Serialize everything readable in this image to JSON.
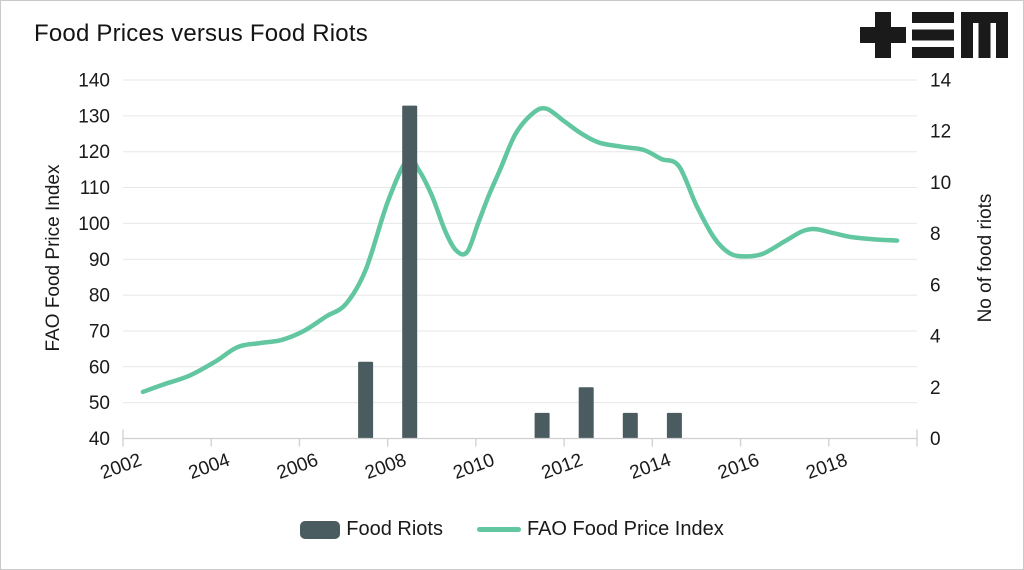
{
  "title": "Food Prices versus Food Riots",
  "logo": {
    "name": "tem-logo",
    "color": "#1a1a1a"
  },
  "colors": {
    "bar": "#4a5c5f",
    "line": "#62c7a0",
    "grid": "#e7e7e7",
    "axis": "#cfcfcf",
    "text": "#1a1a1a",
    "background": "#ffffff",
    "border": "#c9c9c9"
  },
  "legend": {
    "items": [
      {
        "label": "Food Riots",
        "swatch": "bar"
      },
      {
        "label": "FAO Food Price Index",
        "swatch": "line"
      }
    ]
  },
  "chart_data": {
    "type": "combo-bar-line",
    "title": "Food Prices versus Food Riots",
    "grid": "horizontal",
    "legend_position": "bottom",
    "x_axis": {
      "range": [
        2002,
        2020
      ],
      "tick_years": [
        2002,
        2004,
        2006,
        2008,
        2010,
        2012,
        2014,
        2016,
        2018
      ],
      "tick_labels": [
        "2002",
        "2004",
        "2006",
        "2008",
        "2010",
        "2012",
        "2014",
        "2016",
        "2018"
      ],
      "label_rotation_deg": -20,
      "note": "data for year Y is plotted at axis position Y+0.5 (band centers)"
    },
    "y_axis_left": {
      "title": "FAO Food Price Index",
      "min": 40,
      "max": 140,
      "step": 10
    },
    "y_axis_right": {
      "title": "No of food riots",
      "min": 0,
      "max": 14,
      "step": 2
    },
    "series": [
      {
        "name": "Food Riots",
        "type": "bar",
        "axis": "right",
        "color": "#4a5c5f",
        "years": [
          2007,
          2008,
          2011,
          2012,
          2013,
          2014
        ],
        "values": [
          3,
          13,
          1,
          2,
          1,
          1
        ]
      },
      {
        "name": "FAO Food Price Index",
        "type": "line",
        "axis": "left",
        "color": "#62c7a0",
        "years": [
          2002,
          2003,
          2004,
          2005,
          2006,
          2007,
          2008,
          2009,
          2010,
          2011,
          2012,
          2013,
          2014,
          2015,
          2016,
          2017,
          2018,
          2019
        ],
        "values": [
          53,
          57.5,
          65,
          67,
          73.5,
          87,
          118,
          92.5,
          114.5,
          132,
          123.5,
          120.5,
          116.5,
          95,
          92,
          98.5,
          96.5,
          95
        ],
        "curve_samples": [
          [
            2002.45,
            53
          ],
          [
            2002.9,
            55
          ],
          [
            2003.5,
            57.5
          ],
          [
            2004.1,
            61.5
          ],
          [
            2004.6,
            65.5
          ],
          [
            2005.1,
            66.6
          ],
          [
            2005.6,
            67.5
          ],
          [
            2006.1,
            70
          ],
          [
            2006.6,
            74
          ],
          [
            2007.05,
            77.5
          ],
          [
            2007.5,
            87
          ],
          [
            2008.0,
            106
          ],
          [
            2008.45,
            117.9
          ],
          [
            2008.7,
            115
          ],
          [
            2009.0,
            107.8
          ],
          [
            2009.3,
            98
          ],
          [
            2009.55,
            92.5
          ],
          [
            2009.8,
            92
          ],
          [
            2010.05,
            100
          ],
          [
            2010.3,
            108
          ],
          [
            2010.55,
            115
          ],
          [
            2010.9,
            125
          ],
          [
            2011.3,
            130.8
          ],
          [
            2011.6,
            132
          ],
          [
            2012.0,
            128.5
          ],
          [
            2012.4,
            125
          ],
          [
            2012.8,
            122.5
          ],
          [
            2013.3,
            121.4
          ],
          [
            2013.8,
            120.5
          ],
          [
            2014.2,
            118
          ],
          [
            2014.6,
            116
          ],
          [
            2015.0,
            105
          ],
          [
            2015.4,
            96
          ],
          [
            2015.75,
            91.7
          ],
          [
            2016.1,
            90.8
          ],
          [
            2016.5,
            91.5
          ],
          [
            2017.0,
            95
          ],
          [
            2017.4,
            97.8
          ],
          [
            2017.7,
            98.4
          ],
          [
            2018.1,
            97.3
          ],
          [
            2018.5,
            96.2
          ],
          [
            2019.0,
            95.6
          ],
          [
            2019.55,
            95.2
          ]
        ]
      }
    ]
  }
}
